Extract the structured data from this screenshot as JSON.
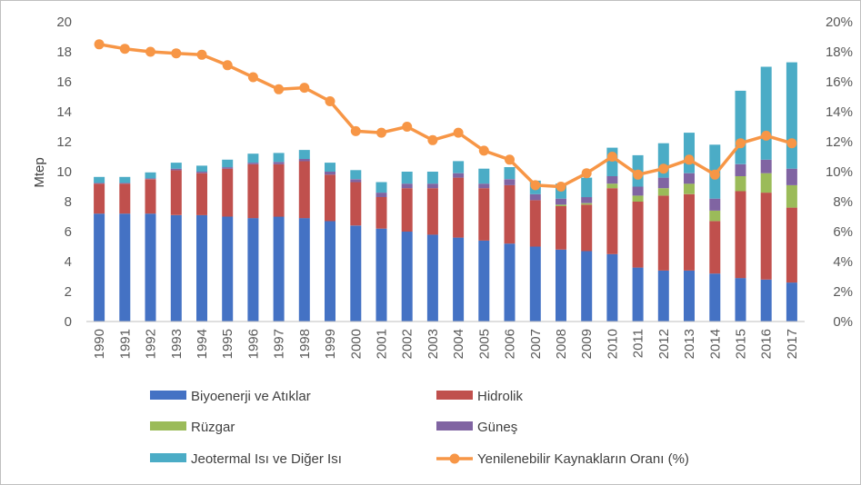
{
  "chart_data": {
    "type": "bar",
    "stacked": true,
    "categories": [
      "1990",
      "1991",
      "1992",
      "1993",
      "1994",
      "1995",
      "1996",
      "1997",
      "1998",
      "1999",
      "2000",
      "2001",
      "2002",
      "2003",
      "2004",
      "2005",
      "2006",
      "2007",
      "2008",
      "2009",
      "2010",
      "2011",
      "2012",
      "2013",
      "2014",
      "2015",
      "2016",
      "2017"
    ],
    "ylabel": "Mtep",
    "ylim": [
      0,
      20
    ],
    "yticks": [
      "0",
      "2",
      "4",
      "6",
      "8",
      "10",
      "12",
      "14",
      "16",
      "18",
      "20"
    ],
    "y2lim": [
      0,
      20
    ],
    "y2ticks": [
      "0%",
      "2%",
      "4%",
      "6%",
      "8%",
      "10%",
      "12%",
      "14%",
      "16%",
      "18%",
      "20%"
    ],
    "grid": false,
    "legend_position": "bottom",
    "series": [
      {
        "name": "Biyoenerji ve Atıklar",
        "color": "#4472C4",
        "values": [
          7.2,
          7.2,
          7.2,
          7.1,
          7.1,
          7.0,
          6.9,
          7.0,
          6.9,
          6.7,
          6.4,
          6.2,
          6.0,
          5.8,
          5.6,
          5.4,
          5.2,
          5.0,
          4.8,
          4.7,
          4.5,
          3.6,
          3.4,
          3.4,
          3.2,
          2.9,
          2.8,
          2.6
        ]
      },
      {
        "name": "Hidrolik",
        "color": "#C0504D",
        "values": [
          2.0,
          2.0,
          2.3,
          3.0,
          2.8,
          3.2,
          3.6,
          3.5,
          3.8,
          3.1,
          2.9,
          2.1,
          2.9,
          3.1,
          4.0,
          3.5,
          3.9,
          3.1,
          2.9,
          3.1,
          4.4,
          4.4,
          5.0,
          5.1,
          3.5,
          5.8,
          5.8,
          5.0
        ]
      },
      {
        "name": "Rüzgar",
        "color": "#9BBB59",
        "values": [
          0,
          0,
          0,
          0,
          0,
          0,
          0,
          0,
          0,
          0,
          0,
          0,
          0,
          0,
          0,
          0,
          0,
          0,
          0.1,
          0.1,
          0.3,
          0.4,
          0.5,
          0.7,
          0.7,
          1.0,
          1.3,
          1.5
        ]
      },
      {
        "name": "Güneş",
        "color": "#8064A2",
        "values": [
          0.05,
          0.05,
          0.05,
          0.1,
          0.1,
          0.1,
          0.1,
          0.15,
          0.15,
          0.2,
          0.2,
          0.3,
          0.3,
          0.3,
          0.3,
          0.3,
          0.4,
          0.4,
          0.4,
          0.4,
          0.5,
          0.6,
          0.7,
          0.7,
          0.8,
          0.8,
          0.9,
          1.1
        ]
      },
      {
        "name": "Jeotermal Isı ve Diğer Isı",
        "color": "#4BACC6",
        "values": [
          0.4,
          0.4,
          0.4,
          0.4,
          0.4,
          0.5,
          0.6,
          0.6,
          0.6,
          0.6,
          0.6,
          0.7,
          0.8,
          0.8,
          0.8,
          1.0,
          0.8,
          0.9,
          1.0,
          1.3,
          1.9,
          2.1,
          2.3,
          2.7,
          3.6,
          4.9,
          6.2,
          7.1
        ]
      }
    ],
    "line_series": {
      "name": "Yenilenebilir Kaynakların Oranı (%)",
      "color": "#F79646",
      "axis": "right",
      "values": [
        18.5,
        18.2,
        18.0,
        17.9,
        17.8,
        17.1,
        16.3,
        15.5,
        15.6,
        14.7,
        12.7,
        12.6,
        13.0,
        12.1,
        12.6,
        11.4,
        10.8,
        9.1,
        9.0,
        9.9,
        11.0,
        9.8,
        10.2,
        10.8,
        9.8,
        11.9,
        12.4,
        11.9
      ]
    }
  }
}
